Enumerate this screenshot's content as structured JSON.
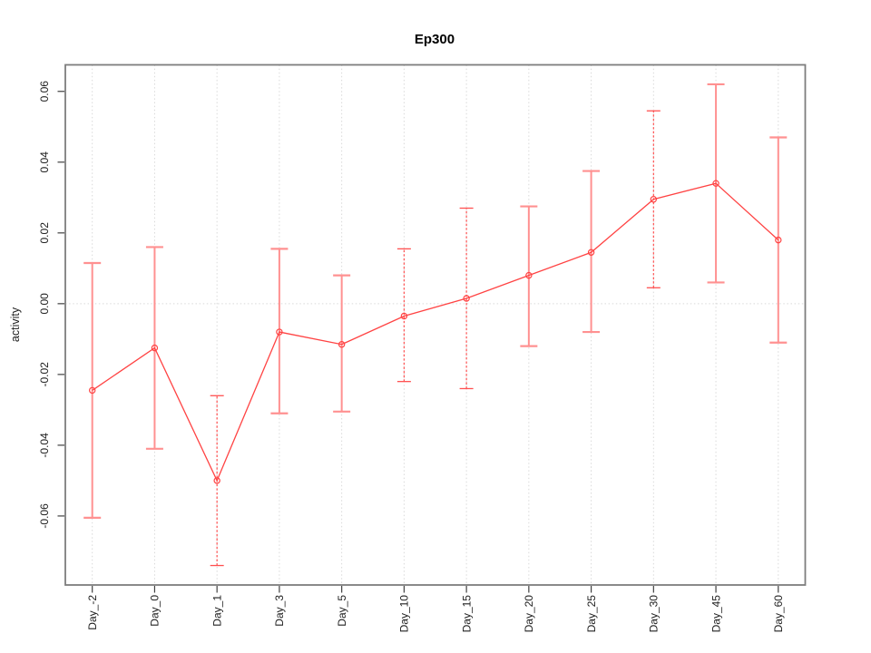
{
  "chart_data": {
    "type": "line",
    "title": "Ep300",
    "xlabel": "",
    "ylabel": "activity",
    "categories": [
      "Day_-2",
      "Day_0",
      "Day_1",
      "Day_3",
      "Day_5",
      "Day_10",
      "Day_15",
      "Day_20",
      "Day_25",
      "Day_30",
      "Day_45",
      "Day_60"
    ],
    "series": [
      {
        "name": "activity",
        "values": [
          -0.0245,
          -0.0125,
          -0.05,
          -0.008,
          -0.0115,
          -0.0035,
          0.0015,
          0.008,
          0.0145,
          0.0295,
          0.034,
          0.018
        ],
        "error_low": [
          -0.0605,
          -0.041,
          -0.074,
          -0.031,
          -0.0305,
          -0.022,
          -0.024,
          -0.012,
          -0.008,
          0.0045,
          0.006,
          -0.011
        ],
        "error_high": [
          0.0115,
          0.016,
          -0.026,
          0.0155,
          0.008,
          0.0155,
          0.027,
          0.0275,
          0.0375,
          0.0545,
          0.062,
          0.047
        ],
        "errorbar_styles": [
          "solid",
          "solid",
          "dashed",
          "solid",
          "solid",
          "dashed",
          "dashed",
          "solid",
          "solid",
          "dashed",
          "solid",
          "solid"
        ]
      }
    ],
    "yticks": [
      {
        "value": 0.06,
        "label": "0.06"
      },
      {
        "value": 0.04,
        "label": "0.04"
      },
      {
        "value": 0.02,
        "label": "0.02"
      },
      {
        "value": 0.0,
        "label": "0.00"
      },
      {
        "value": -0.02,
        "label": "-0.02"
      },
      {
        "value": -0.04,
        "label": "-0.04"
      },
      {
        "value": -0.06,
        "label": "-0.06"
      }
    ],
    "ylim": [
      -0.0795,
      0.0675
    ],
    "grid": {
      "vertical": "dotted line at every category",
      "horizontal": "dotted line at zero only"
    },
    "legend": "none",
    "point_marker": "open-circle",
    "colors": {
      "line": "#ff4343",
      "point": "#ff4343",
      "errorbar_solid": "#ff9191",
      "errorbar_dashed": "#ff5050",
      "gridline": "#d9d9d9",
      "border": "#7d7d7d",
      "tick": "#404040",
      "text": "#1c1c1c",
      "background": "#ffffff"
    }
  }
}
